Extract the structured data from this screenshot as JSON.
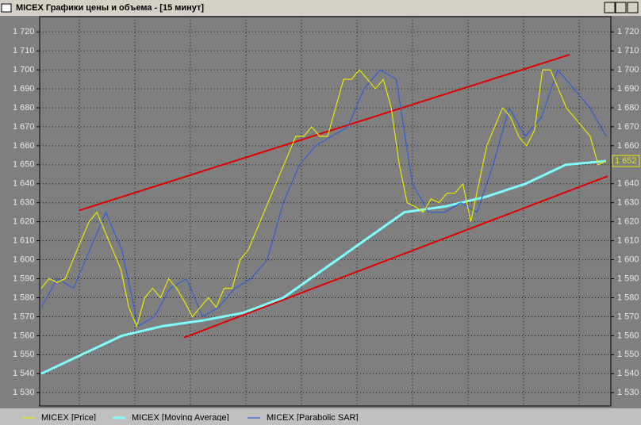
{
  "window_title": "MICEX Графики цены и объема - [15 минут]",
  "chart_data": {
    "type": "line",
    "background": "#7f7f7f",
    "grid": true,
    "ylim": [
      1523,
      1728
    ],
    "yticks": [
      {
        "value": 1530,
        "label": "1 530"
      },
      {
        "value": 1540,
        "label": "1 540"
      },
      {
        "value": 1550,
        "label": "1 550"
      },
      {
        "value": 1560,
        "label": "1 560"
      },
      {
        "value": 1570,
        "label": "1 570"
      },
      {
        "value": 1580,
        "label": "1 580"
      },
      {
        "value": 1590,
        "label": "1 590"
      },
      {
        "value": 1600,
        "label": "1 600"
      },
      {
        "value": 1610,
        "label": "1 610"
      },
      {
        "value": 1620,
        "label": "1 620"
      },
      {
        "value": 1630,
        "label": "1 630"
      },
      {
        "value": 1640,
        "label": "1 640"
      },
      {
        "value": 1650,
        "label": "1 650"
      },
      {
        "value": 1660,
        "label": "1 660"
      },
      {
        "value": 1670,
        "label": "1 670"
      },
      {
        "value": 1680,
        "label": "1 680"
      },
      {
        "value": 1690,
        "label": "1 690"
      },
      {
        "value": 1700,
        "label": "1 700"
      },
      {
        "value": 1710,
        "label": "1 710"
      },
      {
        "value": 1720,
        "label": "1 720"
      }
    ],
    "series": [
      {
        "name": "MICEX [Price]",
        "color": "#e8e800",
        "width": 1.2,
        "values": [
          1585,
          1590,
          1588,
          1590,
          1600,
          1610,
          1620,
          1625,
          1615,
          1605,
          1595,
          1575,
          1565,
          1580,
          1585,
          1580,
          1590,
          1585,
          1578,
          1570,
          1575,
          1580,
          1575,
          1585,
          1585,
          1600,
          1605,
          1615,
          1625,
          1635,
          1645,
          1655,
          1665,
          1665,
          1670,
          1665,
          1665,
          1680,
          1695,
          1695,
          1700,
          1695,
          1690,
          1695,
          1680,
          1650,
          1630,
          1628,
          1625,
          1632,
          1630,
          1635,
          1635,
          1640,
          1620,
          1640,
          1660,
          1670,
          1680,
          1675,
          1665,
          1660,
          1668,
          1700,
          1700,
          1690,
          1680,
          1675,
          1670,
          1665,
          1650,
          1652
        ]
      },
      {
        "name": "MICEX [Moving Average]",
        "color": "#80ffff",
        "width": 3,
        "values": [
          1540,
          1550,
          1560,
          1565,
          1568,
          1572,
          1580,
          1595,
          1610,
          1625,
          1628,
          1633,
          1640,
          1650,
          1652
        ]
      },
      {
        "name": "MICEX [Parabolic SAR]",
        "color": "#3060d0",
        "width": 1.2,
        "values": [
          1575,
          1590,
          1585,
          1605,
          1625,
          1605,
          1565,
          1570,
          1585,
          1590,
          1570,
          1575,
          1585,
          1590,
          1600,
          1630,
          1650,
          1660,
          1665,
          1670,
          1690,
          1700,
          1695,
          1640,
          1625,
          1625,
          1630,
          1625,
          1650,
          1680,
          1665,
          1675,
          1700,
          1690,
          1680,
          1665
        ]
      }
    ],
    "trend_lines": [
      {
        "color": "#e00000",
        "values": [
          1626,
          1708
        ]
      },
      {
        "color": "#e00000",
        "values": [
          1559,
          1644
        ]
      }
    ],
    "last_label": {
      "value": 1652,
      "label": "1 652"
    }
  }
}
